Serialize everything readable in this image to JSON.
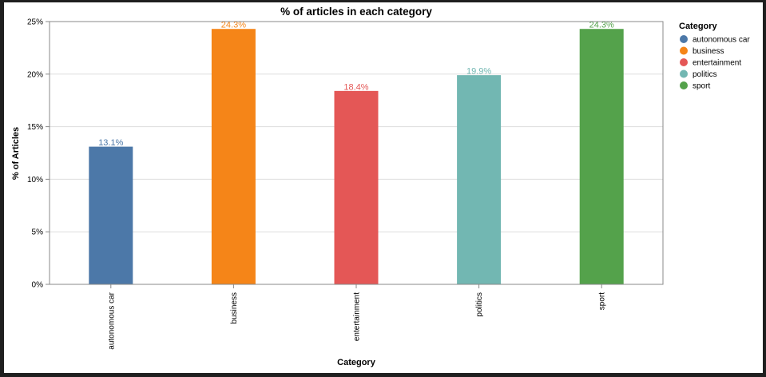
{
  "chart_data": {
    "type": "bar",
    "title": "% of articles in each category",
    "xlabel": "Category",
    "ylabel": "% of Articles",
    "categories": [
      "autonomous car",
      "business",
      "entertainment",
      "politics",
      "sport"
    ],
    "values": [
      13.1,
      24.3,
      18.4,
      19.9,
      24.3
    ],
    "value_labels": [
      "13.1%",
      "24.3%",
      "18.4%",
      "19.9%",
      "24.3%"
    ],
    "colors": [
      "#4c78a8",
      "#f58518",
      "#e45756",
      "#72b7b2",
      "#54a24b"
    ],
    "ylim": [
      0,
      25
    ],
    "yticks": [
      0,
      5,
      10,
      15,
      20,
      25
    ],
    "ytick_labels": [
      "0%",
      "5%",
      "10%",
      "15%",
      "20%",
      "25%"
    ],
    "grid": true,
    "legend": {
      "title": "Category",
      "placement": "right",
      "items": [
        "autonomous car",
        "business",
        "entertainment",
        "politics",
        "sport"
      ]
    }
  }
}
